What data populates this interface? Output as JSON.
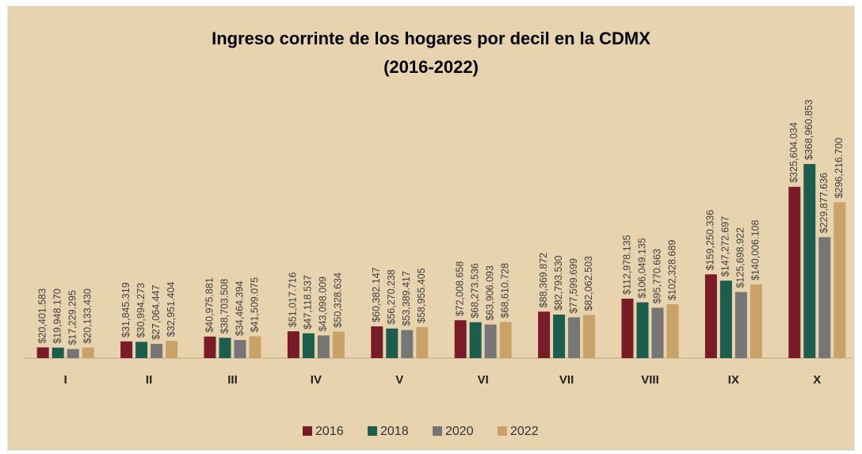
{
  "chart_data": {
    "type": "bar",
    "title": "Ingreso corrinte de los hogares por decil en la CDMX",
    "subtitle": "(2016-2022)",
    "categories": [
      "I",
      "II",
      "III",
      "IV",
      "V",
      "VI",
      "VII",
      "VIII",
      "IX",
      "X"
    ],
    "series": [
      {
        "name": "2016",
        "color": "#7a1c28",
        "values": [
          20401.583,
          31845.319,
          40975.881,
          51017.716,
          60382.147,
          72008.658,
          88369.872,
          112978.135,
          159250.336,
          325604.034
        ],
        "value_labels": [
          "$20,401.583",
          "$31,845.319",
          "$40,975.881",
          "$51,017.716",
          "$60,382.147",
          "$72,008.658",
          "$88,369.872",
          "$112,978.135",
          "$159,250.336",
          "$325,604.034"
        ]
      },
      {
        "name": "2018",
        "color": "#1b5e4e",
        "values": [
          19948.17,
          30994.273,
          38703.508,
          47118.537,
          56270.238,
          68273.536,
          82793.53,
          106049.135,
          147272.697,
          368960.853
        ],
        "value_labels": [
          "$19,948.170",
          "$30,994.273",
          "$38,703.508",
          "$47,118.537",
          "$56,270.238",
          "$68,273.536",
          "$82,793.530",
          "$106,049.135",
          "$147,272.697",
          "$368,960.853"
        ]
      },
      {
        "name": "2020",
        "color": "#767676",
        "values": [
          17229.295,
          27064.447,
          34464.394,
          43098.009,
          53389.417,
          63906.093,
          77599.699,
          95770.663,
          125698.922,
          229877.636
        ],
        "value_labels": [
          "$17,229.295",
          "$27,064.447",
          "$34,464.394",
          "$43,098.009",
          "$53,389.417",
          "$63,906.093",
          "$77,599.699",
          "$95,770.663",
          "$125,698.922",
          "$229,877.636"
        ]
      },
      {
        "name": "2022",
        "color": "#c8a266",
        "values": [
          20133.43,
          32951.404,
          41509.075,
          50328.634,
          58955.405,
          68610.728,
          82062.503,
          102328.689,
          140006.108,
          296216.7
        ],
        "value_labels": [
          "$20,133.430",
          "$32,951.404",
          "$41,509.075",
          "$50,328.634",
          "$58,955.405",
          "$68,610.728",
          "$82,062.503",
          "$102,328.689",
          "$140,006.108",
          "$296,216.700"
        ]
      }
    ]
  }
}
